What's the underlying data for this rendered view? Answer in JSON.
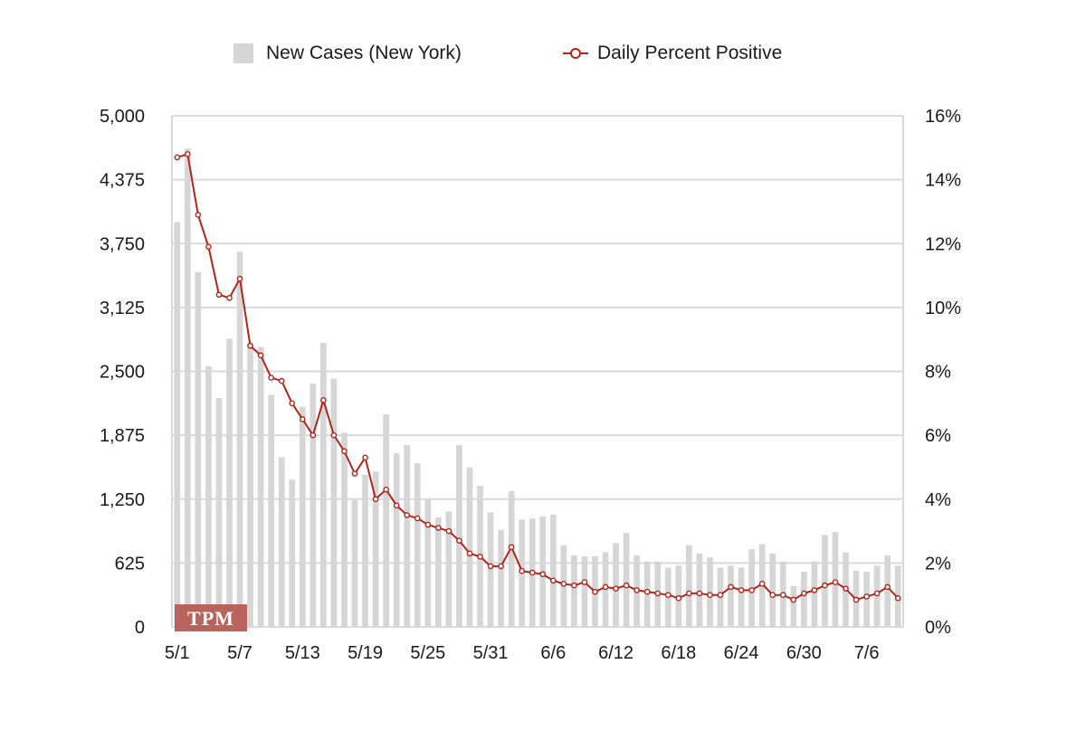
{
  "legend": {
    "bars_label": "New Cases (New York)",
    "line_label": "Daily Percent Positive"
  },
  "watermark": "TPM",
  "colors": {
    "bars": "#d6d6d6",
    "line": "#b3241a",
    "grid": "#d9d9d9",
    "watermark_bg": "#b8645c"
  },
  "chart_data": {
    "type": "bar",
    "title": "",
    "xlabel": "",
    "ylabel": "",
    "x_tick_labels": [
      "5/1",
      "5/7",
      "5/13",
      "5/19",
      "5/25",
      "5/31",
      "6/6",
      "6/12",
      "6/18",
      "6/24",
      "6/30",
      "7/6"
    ],
    "y_left_ticks": [
      "0",
      "625",
      "1,250",
      "1,875",
      "2,500",
      "3,125",
      "3,750",
      "4,375",
      "5,000"
    ],
    "y_right_ticks": [
      "0%",
      "2%",
      "4%",
      "6%",
      "8%",
      "10%",
      "12%",
      "14%",
      "16%"
    ],
    "ylim_left": [
      0,
      5000
    ],
    "ylim_right": [
      0,
      16
    ],
    "grid": true,
    "legend_position": "top",
    "categories": [
      "5/1",
      "5/2",
      "5/3",
      "5/4",
      "5/5",
      "5/6",
      "5/7",
      "5/8",
      "5/9",
      "5/10",
      "5/11",
      "5/12",
      "5/13",
      "5/14",
      "5/15",
      "5/16",
      "5/17",
      "5/18",
      "5/19",
      "5/20",
      "5/21",
      "5/22",
      "5/23",
      "5/24",
      "5/25",
      "5/26",
      "5/27",
      "5/28",
      "5/29",
      "5/30",
      "5/31",
      "6/1",
      "6/2",
      "6/3",
      "6/4",
      "6/5",
      "6/6",
      "6/7",
      "6/8",
      "6/9",
      "6/10",
      "6/11",
      "6/12",
      "6/13",
      "6/14",
      "6/15",
      "6/16",
      "6/17",
      "6/18",
      "6/19",
      "6/20",
      "6/21",
      "6/22",
      "6/23",
      "6/24",
      "6/25",
      "6/26",
      "6/27",
      "6/28",
      "6/29",
      "6/30",
      "7/1",
      "7/2",
      "7/3",
      "7/4",
      "7/5",
      "7/6",
      "7/7",
      "7/8",
      "7/9"
    ],
    "series": [
      {
        "name": "New Cases (New York)",
        "type": "bar",
        "axis": "left",
        "values": [
          3960,
          4680,
          3470,
          2550,
          2240,
          2820,
          3670,
          2780,
          2740,
          2270,
          1660,
          1440,
          2150,
          2380,
          2780,
          2430,
          1900,
          1240,
          1490,
          1520,
          2080,
          1700,
          1780,
          1600,
          1250,
          1070,
          1130,
          1780,
          1560,
          1380,
          1120,
          950,
          1330,
          1050,
          1060,
          1080,
          1100,
          800,
          700,
          690,
          690,
          730,
          820,
          920,
          700,
          640,
          640,
          580,
          600,
          800,
          720,
          680,
          580,
          600,
          580,
          760,
          810,
          720,
          640,
          400,
          540,
          640,
          900,
          930,
          730,
          550,
          540,
          600,
          700,
          600
        ]
      },
      {
        "name": "Daily Percent Positive",
        "type": "line",
        "axis": "right",
        "values": [
          14.7,
          14.8,
          12.9,
          11.9,
          10.4,
          10.3,
          10.9,
          8.8,
          8.5,
          7.8,
          7.7,
          7.0,
          6.5,
          6.0,
          7.1,
          6.0,
          5.5,
          4.8,
          5.3,
          4.0,
          4.3,
          3.8,
          3.5,
          3.4,
          3.2,
          3.1,
          3.0,
          2.7,
          2.3,
          2.2,
          1.9,
          1.9,
          2.5,
          1.75,
          1.7,
          1.65,
          1.45,
          1.35,
          1.3,
          1.4,
          1.1,
          1.25,
          1.2,
          1.3,
          1.15,
          1.1,
          1.05,
          1.0,
          0.9,
          1.05,
          1.05,
          1.0,
          1.0,
          1.25,
          1.15,
          1.15,
          1.35,
          1.0,
          1.0,
          0.85,
          1.05,
          1.15,
          1.3,
          1.4,
          1.2,
          0.85,
          0.95,
          1.05,
          1.25,
          0.9
        ]
      }
    ]
  }
}
